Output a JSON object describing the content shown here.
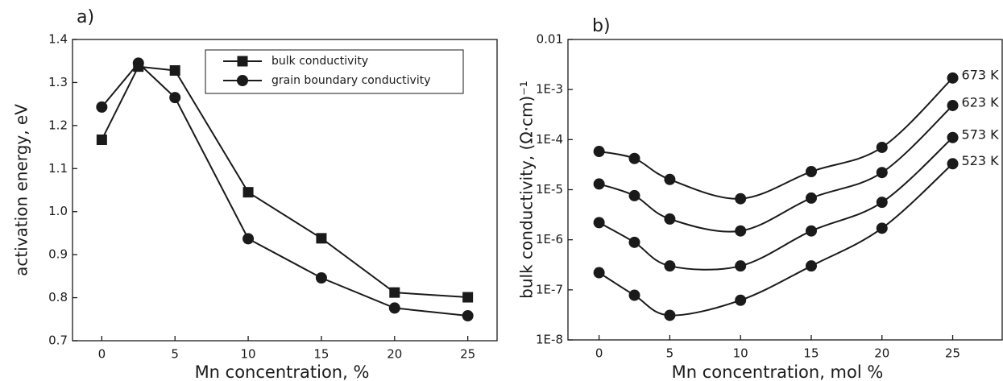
{
  "chart_data": [
    {
      "type": "line",
      "title": "a)",
      "xlabel": "Mn concentration, %",
      "ylabel": "activation energy, eV",
      "x": [
        0,
        2.5,
        5,
        10,
        15,
        20,
        25
      ],
      "series": [
        {
          "name": "bulk conductivity",
          "color": "#1a1a1a",
          "marker": "square",
          "values": [
            1.167,
            1.337,
            1.328,
            1.045,
            0.938,
            0.812,
            0.801
          ]
        },
        {
          "name": "grain boundary conductivity",
          "color": "#1a1a1a",
          "marker": "circle",
          "values": [
            1.243,
            1.345,
            1.265,
            0.937,
            0.846,
            0.776,
            0.758
          ]
        }
      ],
      "xlim": [
        -2,
        27
      ],
      "xticks": [
        0,
        5,
        10,
        15,
        20,
        25
      ],
      "ylim": [
        0.7,
        1.4
      ],
      "yticks": [
        0.7,
        0.8,
        0.9,
        {
          "value": 1,
          "label": "1.0"
        },
        1.1,
        1.2,
        1.3,
        1.4
      ],
      "curve": "straight",
      "legend": "upper right",
      "log_y": false
    },
    {
      "type": "line",
      "title": "b)",
      "xlabel": "Mn concentration, mol %",
      "ylabel": "bulk conductivity, (Ω·cm)⁻¹",
      "x": [
        0,
        2.5,
        5,
        10,
        15,
        20,
        25
      ],
      "series": [
        {
          "name": "673 K",
          "color": "#1a1a1a",
          "marker": "circle",
          "values": [
            5.8e-05,
            4.2e-05,
            1.6e-05,
            6.6e-06,
            2.3e-05,
            7e-05,
            0.0017
          ]
        },
        {
          "name": "623 K",
          "color": "#1a1a1a",
          "marker": "circle",
          "values": [
            1.3e-05,
            7.6e-06,
            2.6e-06,
            1.5e-06,
            6.8e-06,
            2.2e-05,
            0.00048
          ]
        },
        {
          "name": "573 K",
          "color": "#1a1a1a",
          "marker": "circle",
          "values": [
            2.2e-06,
            8.9e-07,
            3e-07,
            3e-07,
            1.5e-06,
            5.6e-06,
            0.00011
          ]
        },
        {
          "name": "523 K",
          "color": "#1a1a1a",
          "marker": "circle",
          "values": [
            2.2e-07,
            7.8e-08,
            3.1e-08,
            6.2e-08,
            3e-07,
            1.7e-06,
            3.3e-05
          ]
        }
      ],
      "xlim": [
        -2.2,
        28.5
      ],
      "xticks": [
        0,
        5,
        10,
        15,
        20,
        25
      ],
      "ylim": [
        1e-08,
        0.01
      ],
      "yticks": [
        {
          "value": 1e-08,
          "label": "1E-8"
        },
        {
          "value": 1e-07,
          "label": "1E-7"
        },
        {
          "value": 1e-06,
          "label": "1E-6"
        },
        {
          "value": 1e-05,
          "label": "1E-5"
        },
        {
          "value": 0.0001,
          "label": "1E-4"
        },
        {
          "value": 0.001,
          "label": "1E-3"
        },
        0.01
      ],
      "curve": "smooth",
      "legend": "line-end",
      "log_y": true
    }
  ]
}
